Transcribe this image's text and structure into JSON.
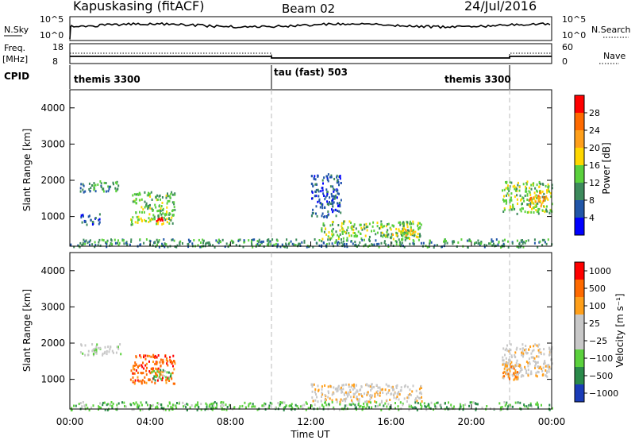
{
  "header": {
    "station": "Kapuskasing (fitACF)",
    "beam": "Beam 02",
    "date": "24/Jul/2016"
  },
  "panels": {
    "nsky_label": "N.Sky",
    "nsearch_label": "N.Search",
    "nsky_left_ticks": [
      "10^5",
      "10^0"
    ],
    "nsky_right_ticks": [
      "10^5",
      "10^0"
    ],
    "freq_label_1": "Freq.",
    "freq_label_2": "[MHz]",
    "freq_ticks": [
      "18",
      "8"
    ],
    "nave_label": "Nave",
    "nave_ticks": [
      "60",
      "0"
    ],
    "cpid_label": "CPID",
    "cpid_segments": [
      "themis 3300",
      "tau (fast) 503",
      "themis 3300"
    ]
  },
  "colors": {
    "power_scale": [
      "#0000ff",
      "#2156a8",
      "#3d8a5c",
      "#5bd13d",
      "#ffd700",
      "#ff9f1a",
      "#ff6a00",
      "#ff0000"
    ],
    "velocity_scale": [
      "#1a3cb8",
      "#2a8a4a",
      "#5bd13d",
      "#c8c8c8",
      "#c8c8c8",
      "#ff9f1a",
      "#ff6a00",
      "#ff0000"
    ]
  },
  "chart_data": [
    {
      "type": "heatmap",
      "panel": "power",
      "xlabel": "",
      "ylabel": "Slant Range [km]",
      "xlim": [
        "00:00",
        "24:00"
      ],
      "ylim": [
        180,
        4500
      ],
      "yticks": [
        "1000",
        "2000",
        "3000",
        "4000"
      ],
      "colorbar_label": "Power [dB]",
      "colorbar_ticks": [
        "4",
        "8",
        "12",
        "16",
        "20",
        "24",
        "28"
      ],
      "regions": [
        {
          "t0": 0.5,
          "t1": 2.5,
          "r0": 1700,
          "r1": 2000,
          "level": 2
        },
        {
          "t0": 0.5,
          "t1": 1.5,
          "r0": 800,
          "r1": 1100,
          "level": 1
        },
        {
          "t0": 3.0,
          "t1": 5.2,
          "r0": 800,
          "r1": 1700,
          "level": 3
        },
        {
          "t0": 4.2,
          "t1": 4.6,
          "r0": 900,
          "r1": 1000,
          "level": 7
        },
        {
          "t0": 12.0,
          "t1": 13.5,
          "r0": 1000,
          "r1": 2200,
          "level": 1
        },
        {
          "t0": 12.5,
          "t1": 17.5,
          "r0": 400,
          "r1": 900,
          "level": 3
        },
        {
          "t0": 16.0,
          "t1": 17.3,
          "r0": 500,
          "r1": 700,
          "level": 4
        },
        {
          "t0": 21.5,
          "t1": 24.0,
          "r0": 1100,
          "r1": 2000,
          "level": 3
        },
        {
          "t0": 22.8,
          "t1": 23.8,
          "r0": 1300,
          "r1": 1700,
          "level": 5
        },
        {
          "t0": 0.0,
          "t1": 24.0,
          "r0": 180,
          "r1": 400,
          "level": 2
        }
      ]
    },
    {
      "type": "heatmap",
      "panel": "velocity",
      "xlabel": "Time UT",
      "ylabel": "Slant Range [km]",
      "xlim": [
        "00:00",
        "24:00"
      ],
      "ylim": [
        180,
        4500
      ],
      "xticks": [
        "00:00",
        "04:00",
        "08:00",
        "12:00",
        "16:00",
        "20:00",
        "00:00"
      ],
      "yticks": [
        "1000",
        "2000",
        "3000",
        "4000"
      ],
      "colorbar_label": "Velocity [m s⁻¹]",
      "colorbar_ticks": [
        "1000",
        "500",
        "100",
        "25",
        "−25",
        "−100",
        "−500",
        "−1000"
      ],
      "regions": [
        {
          "t0": 0.5,
          "t1": 2.5,
          "r0": 1700,
          "r1": 2000,
          "level": 3
        },
        {
          "t0": 3.0,
          "t1": 5.2,
          "r0": 900,
          "r1": 1700,
          "level": 6
        },
        {
          "t0": 4.0,
          "t1": 5.0,
          "r0": 1000,
          "r1": 1300,
          "level": 2
        },
        {
          "t0": 12.0,
          "t1": 17.5,
          "r0": 400,
          "r1": 900,
          "level": 4
        },
        {
          "t0": 21.5,
          "t1": 24.0,
          "r0": 1100,
          "r1": 2000,
          "level": 4
        },
        {
          "t0": 21.5,
          "t1": 22.5,
          "r0": 1000,
          "r1": 1500,
          "level": 5
        },
        {
          "t0": 0.0,
          "t1": 24.0,
          "r0": 180,
          "r1": 400,
          "level": 2
        }
      ]
    }
  ]
}
